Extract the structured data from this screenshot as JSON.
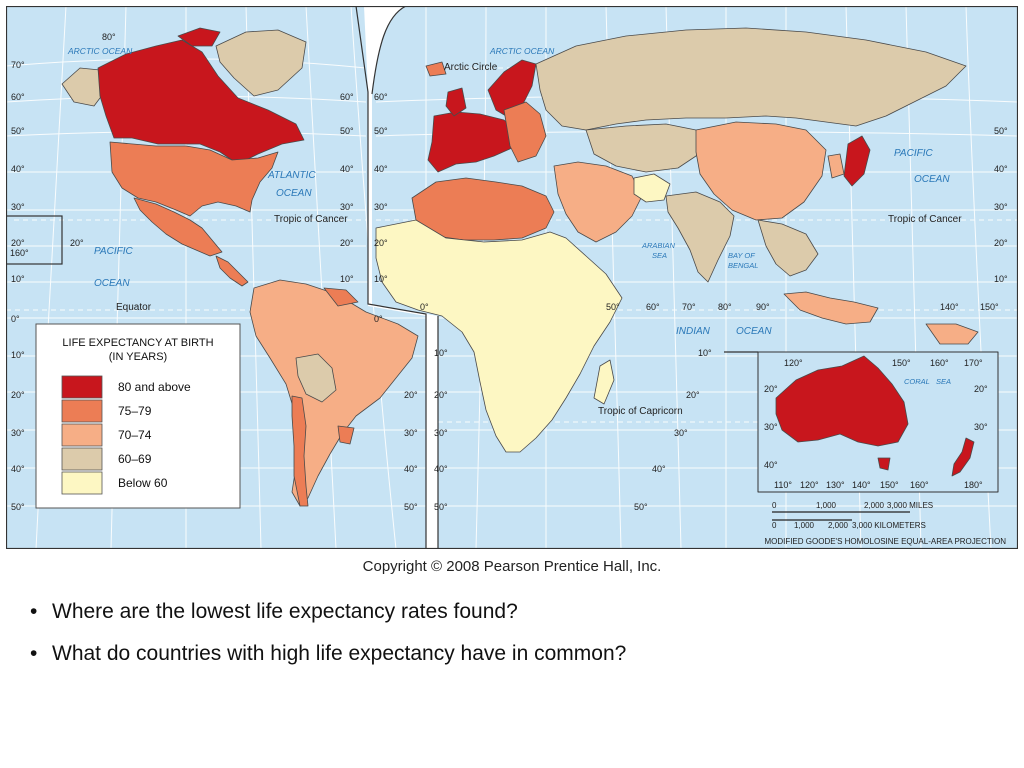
{
  "map": {
    "ocean_color": "#c7e3f4",
    "grid_color": "#ffffff",
    "border_color": "#4a4a4a",
    "labels": {
      "arctic_ocean_west": "ARCTIC OCEAN",
      "arctic_ocean_east": "ARCTIC OCEAN",
      "arctic_circle": "Arctic Circle",
      "atlantic_ocean_1": "ATLANTIC",
      "atlantic_ocean_2": "OCEAN",
      "pacific_west_1": "PACIFIC",
      "pacific_west_2": "OCEAN",
      "pacific_east_1": "PACIFIC",
      "pacific_east_2": "OCEAN",
      "indian_ocean_1": "INDIAN",
      "indian_ocean_2": "OCEAN",
      "arabian_sea_1": "ARABIAN",
      "arabian_sea_2": "SEA",
      "bay_of_bengal_1": "BAY OF",
      "bay_of_bengal_2": "BENGAL",
      "coral_sea": "CORAL   SEA",
      "tropic_cancer_west": "Tropic of Cancer",
      "tropic_cancer_east": "Tropic of Cancer",
      "tropic_capricorn": "Tropic of Capricorn",
      "equator": "Equator"
    },
    "lat_ticks": {
      "left": [
        "70°",
        "60°",
        "50°",
        "40°",
        "30°",
        "20°",
        "10°",
        "0°",
        "10°",
        "20°",
        "30°",
        "40°",
        "50°"
      ],
      "mid_americas": [
        "60°",
        "50°",
        "40°",
        "30°",
        "20°",
        "10°"
      ],
      "mid_south_america": [
        "20°",
        "30°",
        "40°",
        "50°"
      ],
      "mid_europe": [
        "60°",
        "50°",
        "40°",
        "30°",
        "20°",
        "10°",
        "0°"
      ],
      "mid_africa": [
        "10°",
        "20°",
        "30°",
        "40°",
        "50°"
      ],
      "right": [
        "50°",
        "40°",
        "30°",
        "20°",
        "10°"
      ],
      "africa_east": [
        "10°",
        "20°",
        "30°",
        "40°",
        "50°"
      ],
      "australia_left": [
        "20°",
        "30°",
        "40°"
      ],
      "australia_right": [
        "20°",
        "30°"
      ]
    },
    "lon_ticks": {
      "top": "80°",
      "pacific_20": "20°",
      "pacific_160": "160°",
      "equator_row": [
        "0°",
        "50°",
        "60°",
        "70°",
        "80°",
        "90°",
        "140°",
        "150°"
      ],
      "australia_top": [
        "120°",
        "150°",
        "160°",
        "170°"
      ],
      "australia_bottom": [
        "110°",
        "120°",
        "130°",
        "140°",
        "150°",
        "160°",
        "180°"
      ]
    },
    "legend": {
      "title_1": "LIFE EXPECTANCY AT BIRTH",
      "title_2": "(IN YEARS)",
      "items": [
        {
          "label": "80 and above",
          "color": "#c8161d"
        },
        {
          "label": "75–79",
          "color": "#ec7d55"
        },
        {
          "label": "70–74",
          "color": "#f6ae86"
        },
        {
          "label": "60–69",
          "color": "#dccbab"
        },
        {
          "label": "Below 60",
          "color": "#fdf7c3"
        }
      ]
    },
    "scale": {
      "miles_ticks": [
        "0",
        "1,000",
        "2,000",
        "3,000 MILES"
      ],
      "km_ticks": [
        "0",
        "1,000",
        "2,000",
        "3,000 KILOMETERS"
      ],
      "projection": "MODIFIED GOODE'S HOMOLOSINE EQUAL-AREA PROJECTION"
    }
  },
  "copyright": "Copyright © 2008 Pearson Prentice Hall, Inc.",
  "bullets": [
    "Where are the lowest life expectancy rates found?",
    "What do countries with high life expectancy have in common?"
  ]
}
